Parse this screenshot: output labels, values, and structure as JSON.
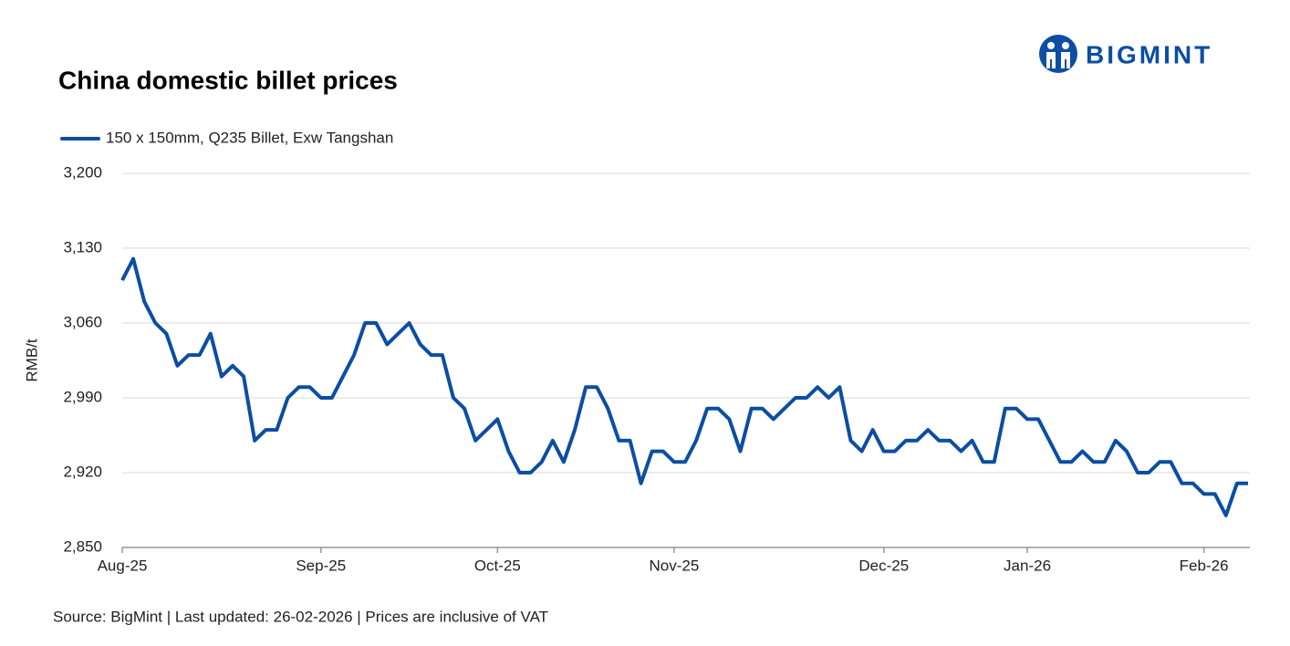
{
  "logo_text": "BIGMINT",
  "chart_data": {
    "type": "line",
    "title": "China domestic billet prices",
    "y_label": "RMB/t",
    "source": "Source: BigMint | Last updated: 26-02-2026 | Prices are inclusive of VAT",
    "categories": [
      "Aug-25",
      null,
      null,
      null,
      null,
      null,
      null,
      null,
      null,
      null,
      null,
      null,
      null,
      null,
      null,
      null,
      null,
      null,
      "Sep-25",
      null,
      null,
      null,
      null,
      null,
      null,
      null,
      null,
      null,
      null,
      null,
      null,
      null,
      null,
      null,
      "Oct-25",
      null,
      null,
      null,
      null,
      null,
      null,
      null,
      null,
      null,
      null,
      null,
      null,
      null,
      null,
      null,
      "Nov-25",
      null,
      null,
      null,
      null,
      null,
      null,
      null,
      null,
      null,
      null,
      null,
      null,
      null,
      null,
      null,
      null,
      null,
      null,
      "Dec-25",
      null,
      null,
      null,
      null,
      null,
      null,
      null,
      null,
      null,
      null,
      null,
      null,
      "Jan-26",
      null,
      null,
      null,
      null,
      null,
      null,
      null,
      null,
      null,
      null,
      null,
      null,
      null,
      null,
      null,
      "Feb-26",
      null,
      null,
      null,
      null
    ],
    "series": [
      {
        "name": "150 x 150mm, Q235 Billet, Exw Tangshan",
        "color": "#0b4ea2",
        "values": [
          3100,
          3120,
          3080,
          3060,
          3050,
          3020,
          3030,
          3030,
          3050,
          3010,
          3020,
          3010,
          2950,
          2960,
          2960,
          2990,
          3000,
          3000,
          2990,
          2990,
          3010,
          3030,
          3060,
          3060,
          3040,
          3050,
          3060,
          3040,
          3030,
          3030,
          2990,
          2980,
          2950,
          2960,
          2970,
          2940,
          2920,
          2920,
          2930,
          2950,
          2930,
          2960,
          3000,
          3000,
          2980,
          2950,
          2950,
          2910,
          2940,
          2940,
          2930,
          2930,
          2950,
          2980,
          2980,
          2970,
          2940,
          2980,
          2980,
          2970,
          2980,
          2990,
          2990,
          3000,
          2990,
          3000,
          2950,
          2940,
          2960,
          2940,
          2940,
          2950,
          2950,
          2960,
          2950,
          2950,
          2940,
          2950,
          2930,
          2930,
          2980,
          2980,
          2970,
          2970,
          2950,
          2930,
          2930,
          2940,
          2930,
          2930,
          2950,
          2940,
          2920,
          2920,
          2930,
          2930,
          2910,
          2910,
          2900,
          2900,
          2880,
          2910,
          2910
        ]
      }
    ],
    "ylim": [
      2850,
      3200
    ],
    "yticks": [
      {
        "value": 2850,
        "label": "2,850"
      },
      {
        "value": 2920,
        "label": "2,920"
      },
      {
        "value": 2990,
        "label": "2,990"
      },
      {
        "value": 3060,
        "label": "3,060"
      },
      {
        "value": 3130,
        "label": "3,130"
      },
      {
        "value": 3200,
        "label": "3,200"
      }
    ],
    "grid": true,
    "legend": "top-left"
  }
}
